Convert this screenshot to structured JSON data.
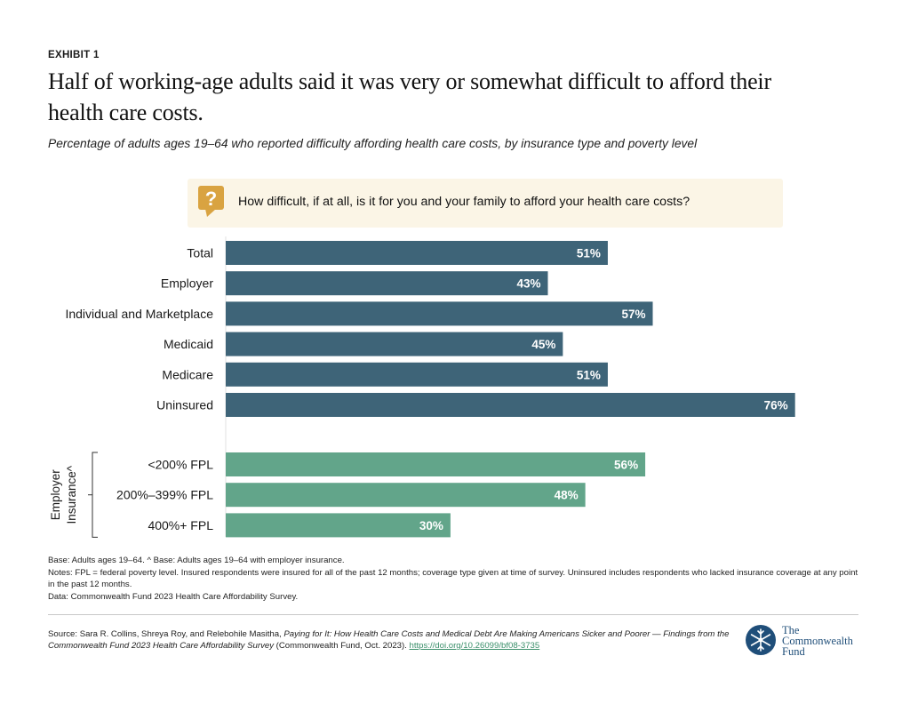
{
  "header": {
    "exhibit": "EXHIBIT 1",
    "title_line1": "Half of working-age adults said it was very or somewhat difficult to afford their",
    "title_line2": "health care costs.",
    "subtitle": "Percentage of adults ages 19–64 who reported difficulty affording health care costs, by insurance type and poverty level"
  },
  "question": {
    "icon": "question-mark-icon",
    "text": "How difficult, if at all, is it for you and your family to afford your health care costs?"
  },
  "chart_data": {
    "type": "bar",
    "orientation": "horizontal",
    "value_format": "%",
    "xlim": [
      0,
      100
    ],
    "colors": {
      "insurance": "#3e6478",
      "employer_fpl": "#62a58a"
    },
    "groups": [
      {
        "label": "",
        "color_key": "insurance",
        "categories": [
          "Total",
          "Employer",
          "Individual and Marketplace",
          "Medicaid",
          "Medicare",
          "Uninsured"
        ],
        "values": [
          51,
          43,
          57,
          45,
          51,
          76
        ]
      },
      {
        "label_line1": "Employer",
        "label_line2": "Insurance^",
        "color_key": "employer_fpl",
        "categories": [
          "<200% FPL",
          "200%–399% FPL",
          "400%+ FPL"
        ],
        "values": [
          56,
          48,
          30
        ]
      }
    ]
  },
  "notes": {
    "base": "Base: Adults ages 19–64. ^ Base: Adults ages 19–64 with employer insurance.",
    "notes": "Notes: FPL = federal poverty level. Insured respondents were insured for all of the past 12 months; coverage type given at time of survey. Uninsured includes respondents who lacked insurance coverage at any point in the past 12 months.",
    "data": "Data: Commonwealth Fund 2023 Health Care Affordability Survey."
  },
  "source": {
    "prefix": "Source: Sara R. Collins, Shreya Roy, and Relebohile Masitha, ",
    "title": "Paying for It: How Health Care Costs and Medical Debt Are Making Americans Sicker and Poorer — Findings from the Commonwealth Fund 2023 Health Care Affordability Survey",
    "suffix": " (Commonwealth Fund, Oct. 2023). ",
    "link": "https://doi.org/10.26099/bf08-3735"
  },
  "logo": {
    "icon": "snowflake-icon",
    "line1": "The",
    "line2": "Commonwealth",
    "line3": "Fund",
    "color": "#1f4e79"
  }
}
